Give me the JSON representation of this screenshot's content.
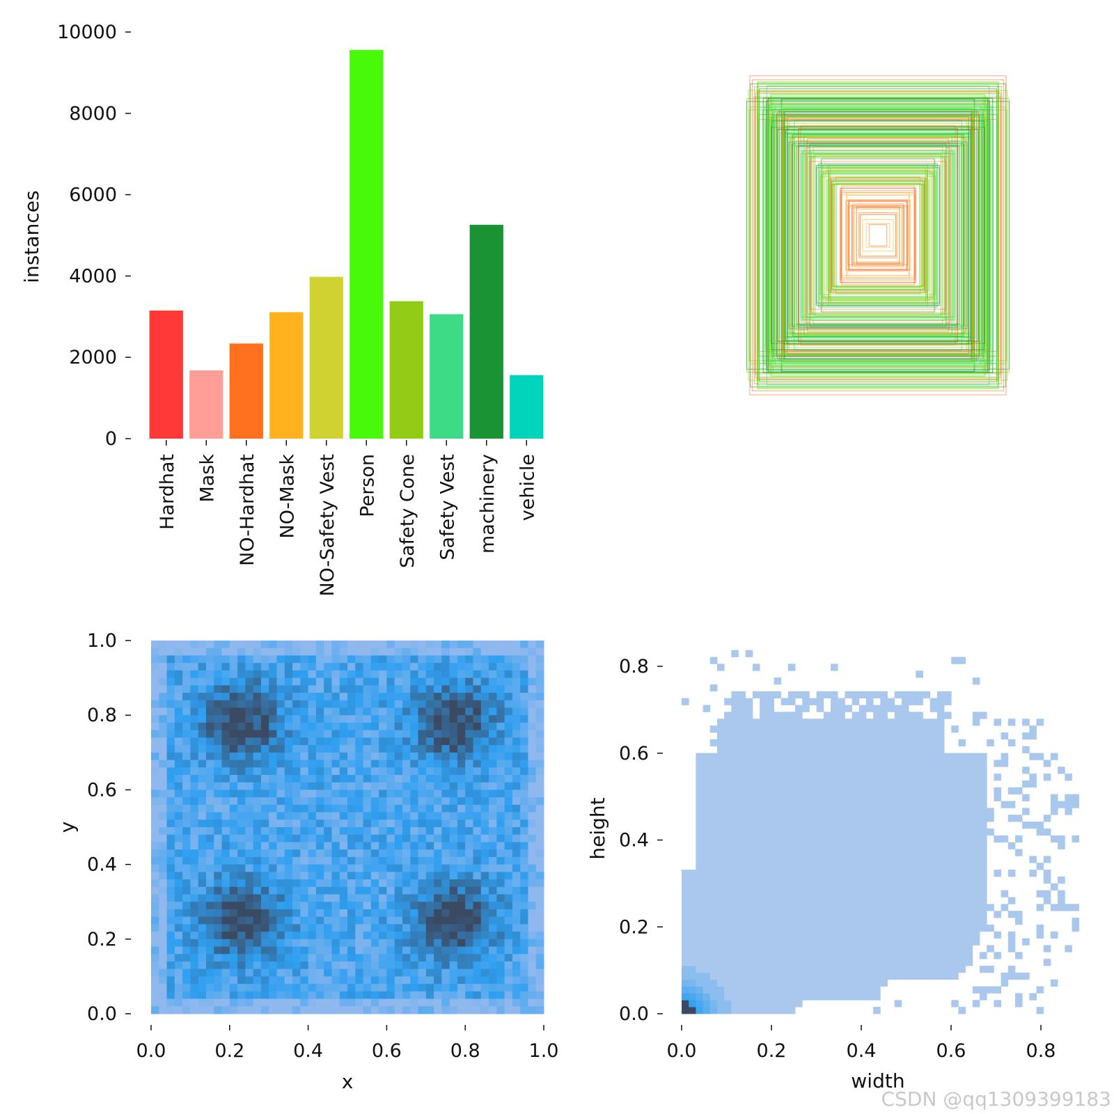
{
  "chart_data": [
    {
      "type": "bar",
      "categories": [
        "Hardhat",
        "Mask",
        "NO-Hardhat",
        "NO-Mask",
        "NO-Safety Vest",
        "Person",
        "Safety Cone",
        "Safety Vest",
        "machinery",
        "vehicle"
      ],
      "values": [
        3150,
        1680,
        2340,
        3110,
        3980,
        9560,
        3380,
        3060,
        5260,
        1560
      ],
      "colors": [
        "#ff3838",
        "#ff9d97",
        "#ff701f",
        "#ffb21d",
        "#cfd231",
        "#48f90a",
        "#92cc17",
        "#3ddb86",
        "#1a9334",
        "#00d4bb"
      ],
      "ylabel": "instances",
      "ylim": [
        0,
        10000
      ],
      "yticks": [
        "0",
        "2000",
        "4000",
        "6000",
        "8000",
        "10000"
      ]
    },
    {
      "type": "box-overlay",
      "center": [
        0.5,
        0.5
      ],
      "colors": [
        "#48f90a",
        "#1a9334",
        "#ff701f",
        "#3ddb86",
        "#92cc17"
      ]
    },
    {
      "type": "heatmap",
      "xlabel": "x",
      "ylabel": "y",
      "xlim": [
        0,
        1
      ],
      "ylim": [
        0,
        1
      ],
      "xticks": [
        "0.0",
        "0.2",
        "0.4",
        "0.6",
        "0.8",
        "1.0"
      ],
      "yticks": [
        "0.0",
        "0.2",
        "0.4",
        "0.6",
        "0.8",
        "1.0"
      ],
      "hotspots": [
        [
          0.23,
          0.25
        ],
        [
          0.77,
          0.25
        ],
        [
          0.23,
          0.78
        ],
        [
          0.77,
          0.78
        ]
      ],
      "colors": {
        "low": "#8fb8ee",
        "mid": "#2f9ff0",
        "high": "#3a4a63"
      }
    },
    {
      "type": "heatmap",
      "xlabel": "width",
      "ylabel": "height",
      "xlim": [
        0,
        0.88
      ],
      "ylim": [
        0,
        0.85
      ],
      "xticks": [
        "0.0",
        "0.2",
        "0.4",
        "0.6",
        "0.8"
      ],
      "yticks": [
        "0.0",
        "0.2",
        "0.4",
        "0.6",
        "0.8"
      ],
      "colors": {
        "base": "#aac8ee",
        "mid": "#2f9ff0",
        "high": "#3a4a63"
      }
    }
  ],
  "watermark": "CSDN @qq1309399183"
}
